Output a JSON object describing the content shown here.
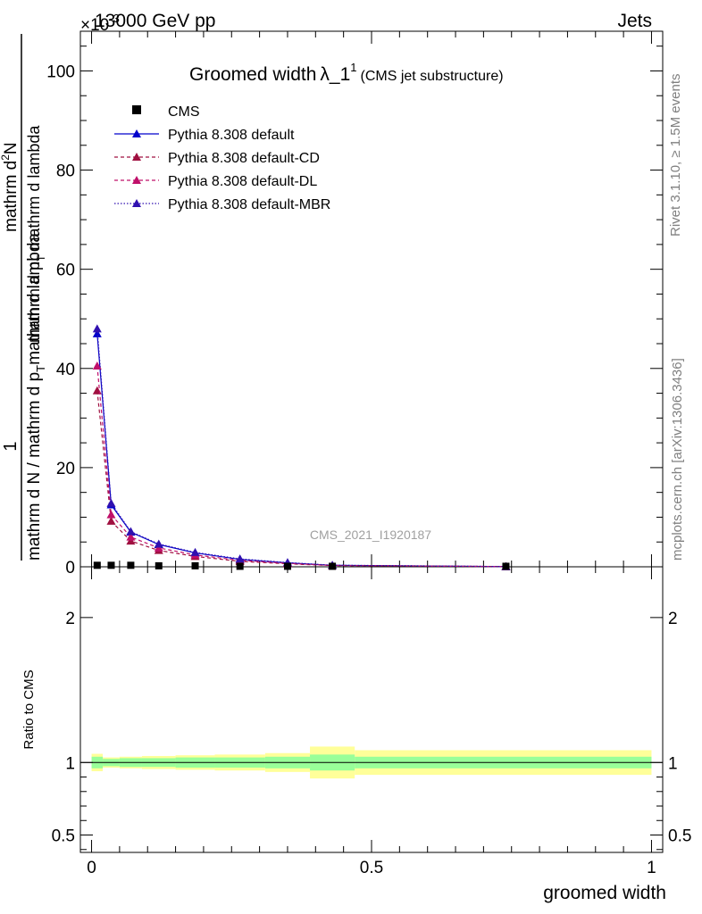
{
  "header": {
    "left_label": "13000 GeV pp",
    "right_label": "Jets",
    "exponent_label": "×10",
    "exponent_power": "-3"
  },
  "plot_title": {
    "main": "Groomed width",
    "symbol": "λ_1",
    "superscript": "1",
    "sub": "(CMS jet substructure)"
  },
  "side_labels": {
    "rivet": "Rivet 3.1.10, ≥ 1.5M events",
    "mcplots": "mcplots.cern.ch [arXiv:1306.3436]"
  },
  "watermark": "CMS_2021_I1920187",
  "y_label": {
    "numerator": "1",
    "denominator_main": "mathrm d N / mathrm d p",
    "denominator_sub": "T",
    "denominator_tail": "mathrm d lambda",
    "inner_numerator_main": "mathrm d",
    "inner_numerator_super": "2",
    "inner_numerator_tail": "N",
    "inner_denominator_main": "mathrm d p",
    "inner_denominator_sub": "T",
    "inner_denominator_tail": " mathrm d lambda"
  },
  "ratio_ylabel": "Ratio to CMS",
  "x_label": "groomed width",
  "legend": [
    {
      "label": "CMS",
      "color": "#000000",
      "style": "square"
    },
    {
      "label": "Pythia 8.308 default",
      "color": "#0000cc",
      "style": "solid"
    },
    {
      "label": "Pythia 8.308 default-CD",
      "color": "#a01040",
      "style": "dashed"
    },
    {
      "label": "Pythia 8.308 default-DL",
      "color": "#c0106a",
      "style": "dashed"
    },
    {
      "label": "Pythia 8.308 default-MBR",
      "color": "#3010b0",
      "style": "dotted"
    }
  ],
  "chart_data": {
    "type": "line",
    "xlabel": "groomed width",
    "xlim": [
      -0.02,
      1.02
    ],
    "ylim": [
      0,
      108
    ],
    "y_multiplier": "×10^-3",
    "ratio_ylim": [
      0.38,
      2.35
    ],
    "x_ticks": [
      {
        "value": 0,
        "label": "0"
      },
      {
        "value": 0.5,
        "label": "0.5"
      },
      {
        "value": 1,
        "label": "1"
      }
    ],
    "y_ticks": [
      {
        "value": 0,
        "label": "0"
      },
      {
        "value": 20,
        "label": "20"
      },
      {
        "value": 40,
        "label": "40"
      },
      {
        "value": 60,
        "label": "60"
      },
      {
        "value": 80,
        "label": "80"
      },
      {
        "value": 100,
        "label": "100"
      }
    ],
    "ratio_ticks": [
      {
        "value": 0.5,
        "label": "0.5"
      },
      {
        "value": 1,
        "label": "1"
      },
      {
        "value": 2,
        "label": "2"
      }
    ],
    "cms": {
      "x": [
        0.01,
        0.035,
        0.07,
        0.12,
        0.185,
        0.265,
        0.35,
        0.43,
        0.74
      ],
      "y": [
        0.3,
        0.3,
        0.3,
        0.2,
        0.2,
        0.1,
        0.1,
        0.1,
        0.1
      ]
    },
    "series": [
      {
        "name": "Pythia 8.308 default",
        "color": "#0000cc",
        "dash": "",
        "x": [
          0.01,
          0.035,
          0.07,
          0.12,
          0.185,
          0.265,
          0.35,
          0.43,
          0.74
        ],
        "y": [
          47,
          12.5,
          7,
          4.5,
          2.8,
          1.5,
          0.8,
          0.3,
          0.05
        ]
      },
      {
        "name": "Pythia 8.308 default-CD",
        "color": "#a01040",
        "dash": "4,3",
        "x": [
          0.01,
          0.035,
          0.07,
          0.12,
          0.185,
          0.265,
          0.35,
          0.43,
          0.74
        ],
        "y": [
          35.5,
          9.2,
          5.2,
          3.3,
          2.1,
          1.1,
          0.6,
          0.25,
          0.05
        ]
      },
      {
        "name": "Pythia 8.308 default-DL",
        "color": "#c0106a",
        "dash": "4,3",
        "x": [
          0.01,
          0.035,
          0.07,
          0.12,
          0.185,
          0.265,
          0.35,
          0.43,
          0.74
        ],
        "y": [
          40.5,
          10.5,
          6,
          3.8,
          2.4,
          1.3,
          0.7,
          0.28,
          0.05
        ]
      },
      {
        "name": "Pythia 8.308 default-MBR",
        "color": "#3010b0",
        "dash": "1.5,2",
        "x": [
          0.01,
          0.035,
          0.07,
          0.12,
          0.185,
          0.265,
          0.35,
          0.43,
          0.74
        ],
        "y": [
          48,
          12.8,
          7.1,
          4.6,
          2.9,
          1.6,
          0.85,
          0.32,
          0.05
        ]
      }
    ],
    "ratio_bands": [
      {
        "x0": 0.0,
        "x1": 0.02,
        "green": [
          0.96,
          1.04
        ],
        "yellow": [
          0.94,
          1.06
        ]
      },
      {
        "x0": 0.02,
        "x1": 0.05,
        "green": [
          0.975,
          1.025
        ],
        "yellow": [
          0.965,
          1.035
        ]
      },
      {
        "x0": 0.05,
        "x1": 0.09,
        "green": [
          0.97,
          1.03
        ],
        "yellow": [
          0.96,
          1.04
        ]
      },
      {
        "x0": 0.09,
        "x1": 0.15,
        "green": [
          0.97,
          1.03
        ],
        "yellow": [
          0.955,
          1.045
        ]
      },
      {
        "x0": 0.15,
        "x1": 0.22,
        "green": [
          0.965,
          1.035
        ],
        "yellow": [
          0.95,
          1.05
        ]
      },
      {
        "x0": 0.22,
        "x1": 0.31,
        "green": [
          0.965,
          1.035
        ],
        "yellow": [
          0.945,
          1.055
        ]
      },
      {
        "x0": 0.31,
        "x1": 0.39,
        "green": [
          0.96,
          1.04
        ],
        "yellow": [
          0.935,
          1.065
        ]
      },
      {
        "x0": 0.39,
        "x1": 0.47,
        "green": [
          0.945,
          1.055
        ],
        "yellow": [
          0.89,
          1.11
        ]
      },
      {
        "x0": 0.47,
        "x1": 1.0,
        "green": [
          0.96,
          1.04
        ],
        "yellow": [
          0.915,
          1.085
        ]
      }
    ]
  }
}
